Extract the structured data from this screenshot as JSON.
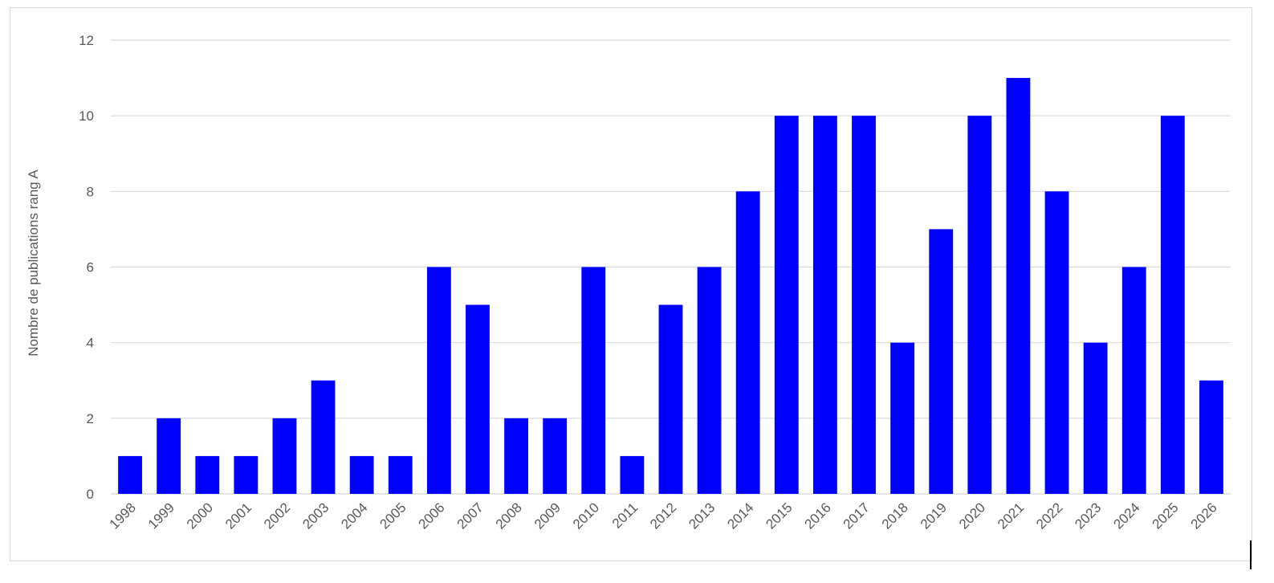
{
  "chart_data": {
    "type": "bar",
    "title": "",
    "xlabel": "",
    "ylabel": "Nombre de publications rang A",
    "categories": [
      "1998",
      "1999",
      "2000",
      "2001",
      "2002",
      "2003",
      "2004",
      "2005",
      "2006",
      "2007",
      "2008",
      "2009",
      "2010",
      "2011",
      "2012",
      "2013",
      "2014",
      "2015",
      "2016",
      "2017",
      "2018",
      "2019",
      "2020",
      "2021",
      "2022",
      "2023",
      "2024",
      "2025",
      "2026"
    ],
    "values": [
      1,
      2,
      1,
      1,
      2,
      3,
      1,
      1,
      6,
      5,
      2,
      2,
      6,
      1,
      5,
      6,
      8,
      10,
      10,
      10,
      4,
      7,
      10,
      11,
      8,
      4,
      6,
      10,
      3
    ],
    "ylim": [
      0,
      12
    ],
    "yticks": [
      0,
      2,
      4,
      6,
      8,
      10,
      12
    ],
    "grid": true,
    "legend": "none",
    "bar_color": "#0000ff",
    "grid_color": "#d9d9d9"
  }
}
